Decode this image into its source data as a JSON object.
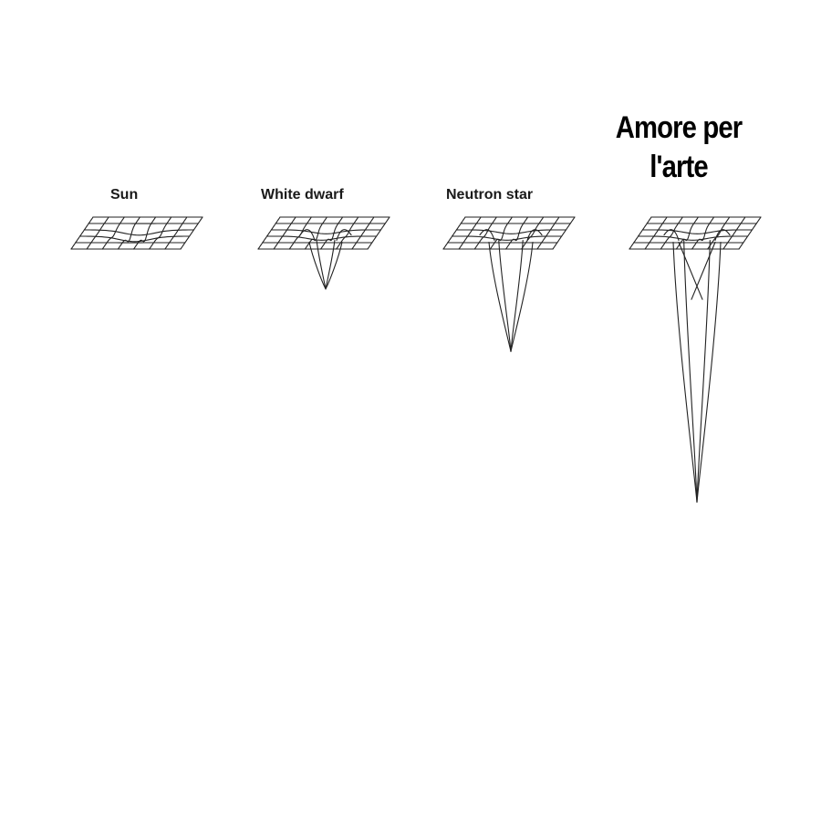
{
  "labels": {
    "sun": "Sun",
    "white_dwarf": "White dwarf",
    "neutron_star": "Neutron star"
  },
  "meme": {
    "line1": "Amore per",
    "line2": "l'arte"
  },
  "wells": [
    {
      "object": "Sun",
      "relative_depth": 0.05
    },
    {
      "object": "White dwarf",
      "relative_depth": 0.18
    },
    {
      "object": "Neutron star",
      "relative_depth": 0.42
    },
    {
      "object": "Amore per l'arte",
      "relative_depth": 1.0
    }
  ]
}
